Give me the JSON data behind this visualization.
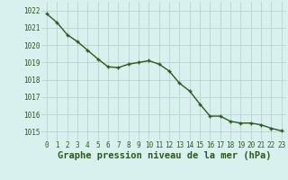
{
  "x": [
    0,
    1,
    2,
    3,
    4,
    5,
    6,
    7,
    8,
    9,
    10,
    11,
    12,
    13,
    14,
    15,
    16,
    17,
    18,
    19,
    20,
    21,
    22,
    23
  ],
  "y": [
    1021.8,
    1021.3,
    1020.6,
    1020.2,
    1019.7,
    1019.2,
    1018.75,
    1018.7,
    1018.9,
    1019.0,
    1019.1,
    1018.9,
    1018.5,
    1017.8,
    1017.35,
    1016.6,
    1015.9,
    1015.9,
    1015.6,
    1015.5,
    1015.5,
    1015.4,
    1015.2,
    1015.05
  ],
  "line_color": "#2d5a1b",
  "marker": "+",
  "background_color": "#d8f0ee",
  "grid_color": "#b8d4d0",
  "label_color": "#2d5a1b",
  "xlabel": "Graphe pression niveau de la mer (hPa)",
  "ylim": [
    1014.5,
    1022.5
  ],
  "yticks": [
    1015,
    1016,
    1017,
    1018,
    1019,
    1020,
    1021,
    1022
  ],
  "xticks": [
    0,
    1,
    2,
    3,
    4,
    5,
    6,
    7,
    8,
    9,
    10,
    11,
    12,
    13,
    14,
    15,
    16,
    17,
    18,
    19,
    20,
    21,
    22,
    23
  ],
  "tick_label_fontsize": 5.5,
  "xlabel_fontsize": 7.5,
  "marker_size": 3.5,
  "line_width": 1.0
}
